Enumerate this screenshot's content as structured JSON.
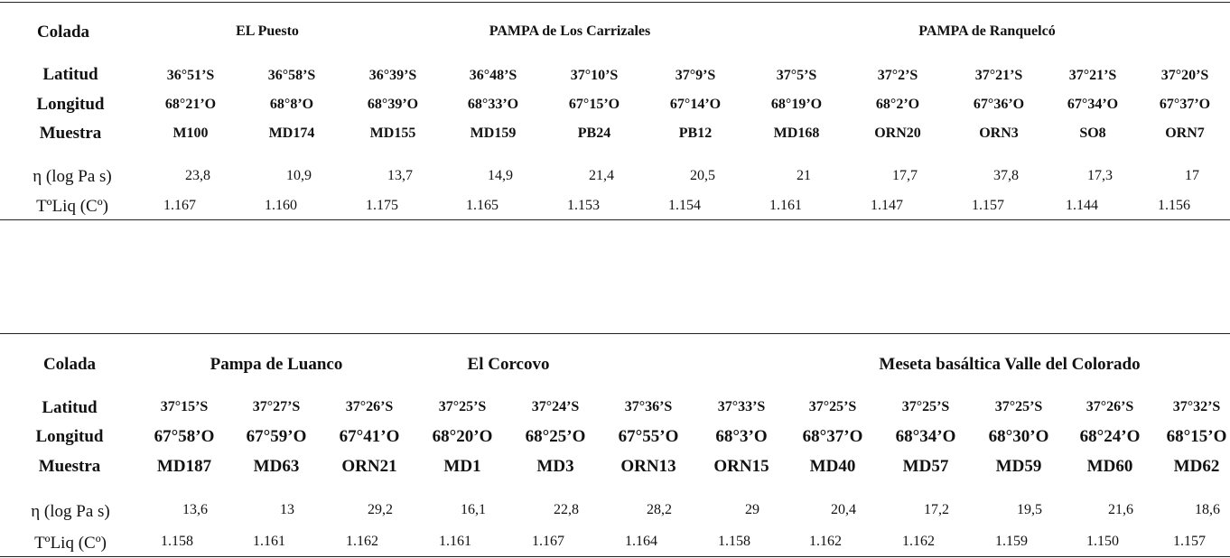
{
  "table1": {
    "labels": {
      "colada": "Colada",
      "latitud": "Latitud",
      "longitud": "Longitud",
      "muestra": "Muestra",
      "eta": "η (log Pa s)",
      "tliq": "TºLiq (Cº)"
    },
    "groups": [
      "EL Puesto",
      "PAMPA de Los Carrizales",
      "PAMPA de Ranquelcó"
    ],
    "columns": [
      {
        "lat": "36°51’S",
        "lon": "68°21’O",
        "muestra": "M100",
        "eta": "23,8",
        "tliq": "1.167"
      },
      {
        "lat": "36°58’S",
        "lon": "68°8’O",
        "muestra": "MD174",
        "eta": "10,9",
        "tliq": "1.160"
      },
      {
        "lat": "36°39’S",
        "lon": "68°39’O",
        "muestra": "MD155",
        "eta": "13,7",
        "tliq": "1.175"
      },
      {
        "lat": "36°48’S",
        "lon": "68°33’O",
        "muestra": "MD159",
        "eta": "14,9",
        "tliq": "1.165"
      },
      {
        "lat": "37°10’S",
        "lon": "67°15’O",
        "muestra": "PB24",
        "eta": "21,4",
        "tliq": "1.153"
      },
      {
        "lat": "37°9’S",
        "lon": "67°14’O",
        "muestra": "PB12",
        "eta": "20,5",
        "tliq": "1.154"
      },
      {
        "lat": "37°5’S",
        "lon": "68°19’O",
        "muestra": "MD168",
        "eta": "21",
        "tliq": "1.161"
      },
      {
        "lat": "37°2’S",
        "lon": "68°2’O",
        "muestra": "ORN20",
        "eta": "17,7",
        "tliq": "1.147"
      },
      {
        "lat": "37°21’S",
        "lon": "67°36’O",
        "muestra": "ORN3",
        "eta": "37,8",
        "tliq": "1.157"
      },
      {
        "lat": "37°21’S",
        "lon": "67°34’O",
        "muestra": "SO8",
        "eta": "17,3",
        "tliq": "1.144"
      },
      {
        "lat": "37°20’S",
        "lon": "67°37’O",
        "muestra": "ORN7",
        "eta": "17",
        "tliq": "1.156"
      }
    ]
  },
  "table2": {
    "labels": {
      "colada": "Colada",
      "latitud": "Latitud",
      "longitud": "Longitud",
      "muestra": "Muestra",
      "eta": "η (log Pa s)",
      "tliq": "TºLiq (Cº)"
    },
    "groups": [
      "Pampa de Luanco",
      "El Corcovo",
      "Meseta basáltica Valle del Colorado"
    ],
    "columns": [
      {
        "lat": "37°15’S",
        "lon": "67°58’O",
        "muestra": "MD187",
        "eta": "13,6",
        "tliq": "1.158"
      },
      {
        "lat": "37°27’S",
        "lon": "67°59’O",
        "muestra": "MD63",
        "eta": "13",
        "tliq": "1.161"
      },
      {
        "lat": "37°26’S",
        "lon": "67°41’O",
        "muestra": "ORN21",
        "eta": "29,2",
        "tliq": "1.162"
      },
      {
        "lat": "37°25’S",
        "lon": "68°20’O",
        "muestra": "MD1",
        "eta": "16,1",
        "tliq": "1.161"
      },
      {
        "lat": "37°24’S",
        "lon": "68°25’O",
        "muestra": "MD3",
        "eta": "22,8",
        "tliq": "1.167"
      },
      {
        "lat": "37°36’S",
        "lon": "67°55’O",
        "muestra": "ORN13",
        "eta": "28,2",
        "tliq": "1.164"
      },
      {
        "lat": "37°33’S",
        "lon": "68°3’O",
        "muestra": "ORN15",
        "eta": "29",
        "tliq": "1.158"
      },
      {
        "lat": "37°25’S",
        "lon": "68°37’O",
        "muestra": "MD40",
        "eta": "20,4",
        "tliq": "1.162"
      },
      {
        "lat": "37°25’S",
        "lon": "68°34’O",
        "muestra": "MD57",
        "eta": "17,2",
        "tliq": "1.162"
      },
      {
        "lat": "37°25’S",
        "lon": "68°30’O",
        "muestra": "MD59",
        "eta": "19,5",
        "tliq": "1.159"
      },
      {
        "lat": "37°26’S",
        "lon": "68°24’O",
        "muestra": "MD60",
        "eta": "21,6",
        "tliq": "1.150"
      },
      {
        "lat": "37°32’S",
        "lon": "68°15’O",
        "muestra": "MD62",
        "eta": "18,6",
        "tliq": "1.157"
      }
    ]
  }
}
